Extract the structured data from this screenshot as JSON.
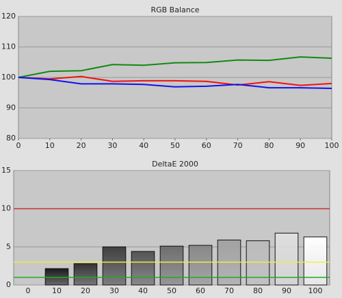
{
  "chart_data": [
    {
      "type": "line",
      "title": "RGB Balance",
      "x": [
        0,
        10,
        20,
        30,
        40,
        50,
        60,
        70,
        80,
        90,
        100
      ],
      "xlim": [
        0,
        100
      ],
      "xticks": [
        0,
        10,
        20,
        30,
        40,
        50,
        60,
        70,
        80,
        90,
        100
      ],
      "ylim": [
        80,
        120
      ],
      "yticks": [
        80,
        90,
        100,
        110,
        120
      ],
      "grid": true,
      "series": [
        {
          "name": "Red",
          "color": "#ee1111",
          "values": [
            100,
            99.5,
            100.3,
            98.7,
            98.9,
            98.9,
            98.7,
            97.5,
            98.6,
            97.4,
            98.0
          ]
        },
        {
          "name": "Green",
          "color": "#118811",
          "values": [
            100,
            102,
            102.2,
            104.2,
            104,
            104.8,
            104.9,
            105.7,
            105.6,
            106.7,
            106.3
          ]
        },
        {
          "name": "Blue",
          "color": "#1111ee",
          "values": [
            100,
            99.3,
            97.9,
            97.9,
            97.7,
            96.9,
            97.1,
            97.7,
            96.6,
            96.6,
            96.4
          ]
        }
      ]
    },
    {
      "type": "bar",
      "title": "DeltaE 2000",
      "categories": [
        "0",
        "10",
        "20",
        "30",
        "40",
        "50",
        "60",
        "70",
        "80",
        "90",
        "100"
      ],
      "values": [
        null,
        2.15,
        2.8,
        5.0,
        4.4,
        5.1,
        5.2,
        5.9,
        5.8,
        6.8,
        6.3
      ],
      "colors": [
        null,
        "#1a1a1a",
        "#333333",
        "#404040",
        "#555555",
        "#6e6e6e",
        "#888888",
        "#a2a2a2",
        "#bcbcbc",
        "#dedede",
        "#ffffff"
      ],
      "ylim": [
        0,
        15
      ],
      "yticks": [
        0,
        5,
        10,
        15
      ],
      "grid": true,
      "reference_lines": [
        {
          "value": 10,
          "color": "#cc3333"
        },
        {
          "value": 3,
          "color": "#eeee44"
        },
        {
          "value": 1,
          "color": "#22aa22"
        }
      ]
    }
  ]
}
